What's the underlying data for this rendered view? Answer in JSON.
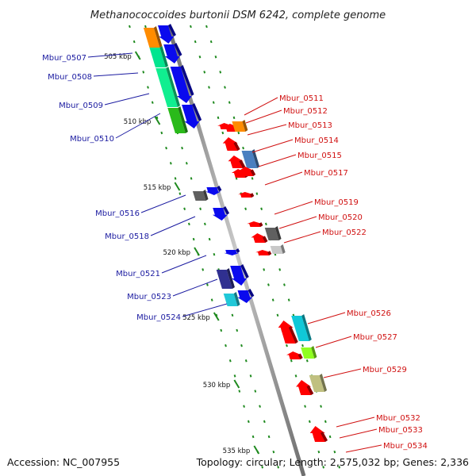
{
  "title": "Methanococcoides burtonii DSM 6242, complete genome",
  "accession_text": "Accession: NC_007955",
  "summary_text": "Topology: circular; Length: 2,575,032 bp; Genes: 2,336",
  "colors": {
    "backbone": "#8a8a8a",
    "dash": "#1f8a1f",
    "forward_label": "#1a1aa0",
    "reverse_label": "#d01010"
  },
  "scale_marks": [
    "505 kbp",
    "510 kbp",
    "515 kbp",
    "520 kbp",
    "525 kbp",
    "530 kbp",
    "535 kbp"
  ],
  "forward_labels": [
    "Mbur_0507",
    "Mbur_0508",
    "Mbur_0509",
    "Mbur_0510",
    "Mbur_0516",
    "Mbur_0518",
    "Mbur_0521",
    "Mbur_0523",
    "Mbur_0524"
  ],
  "reverse_labels": [
    "Mbur_0511",
    "Mbur_0512",
    "Mbur_0513",
    "Mbur_0514",
    "Mbur_0515",
    "Mbur_0517",
    "Mbur_0519",
    "Mbur_0520",
    "Mbur_0522",
    "Mbur_0526",
    "Mbur_0527",
    "Mbur_0529",
    "Mbur_0532",
    "Mbur_0533",
    "Mbur_0534"
  ]
}
